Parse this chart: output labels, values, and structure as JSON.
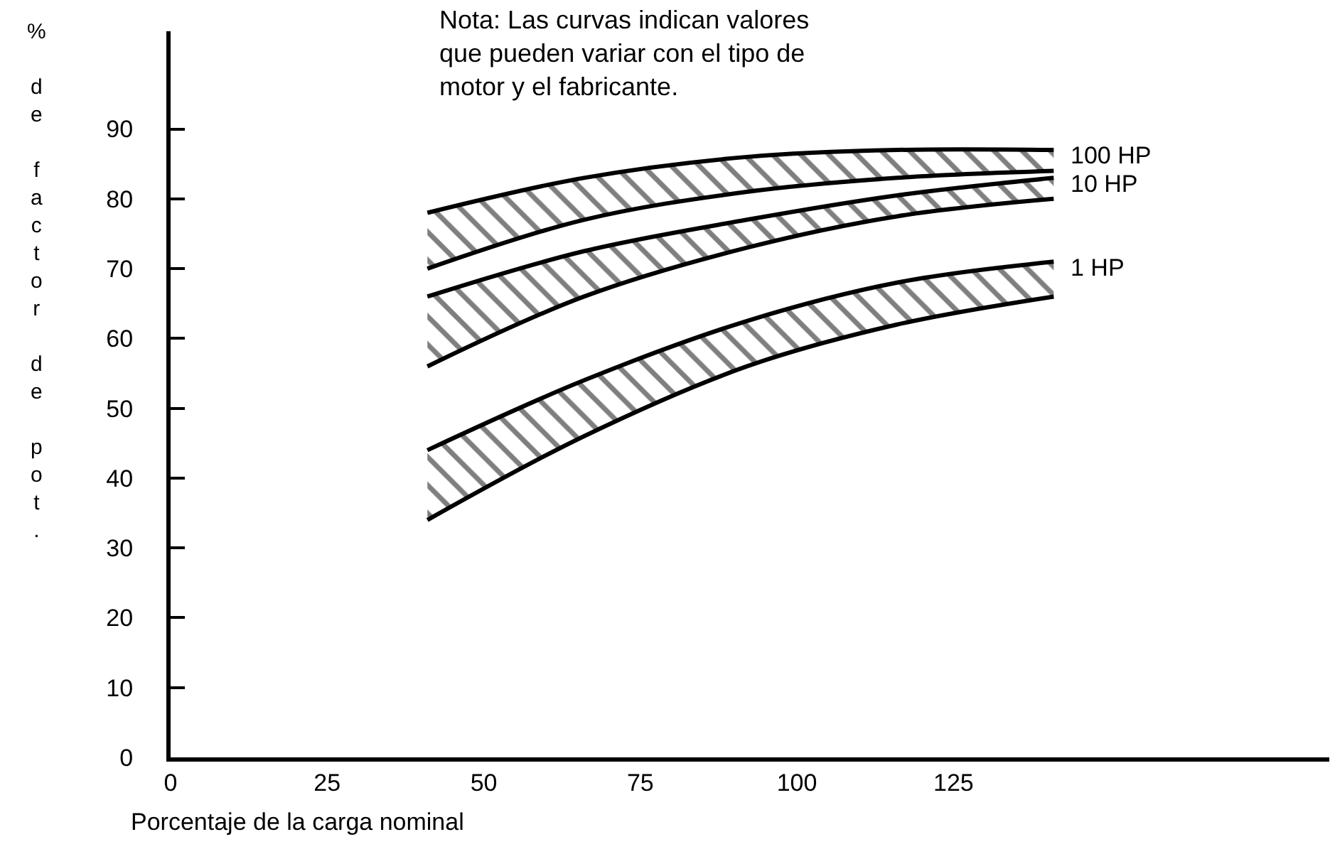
{
  "chart_data": {
    "type": "area",
    "ylabel": "% de factor de pot.",
    "xlabel": "Porcentaje de la carga nominal",
    "annotations": [
      "Nota: Las curvas indican valores que pueden variar con el tipo de motor y el fabricante."
    ],
    "x": [
      41,
      66,
      92,
      116,
      141
    ],
    "series": [
      {
        "name": "100 HP",
        "color": "#000000",
        "values": [
          null,
          null,
          null,
          null,
          null
        ],
        "lower": [
          70,
          77,
          81,
          83,
          84
        ],
        "upper": [
          78,
          83,
          86,
          87,
          87
        ]
      },
      {
        "name": "10 HP",
        "color": "#000000",
        "values": [
          null,
          null,
          null,
          null,
          null
        ],
        "lower": [
          56,
          66,
          73,
          77.5,
          80
        ],
        "upper": [
          66,
          72.5,
          77,
          80.5,
          83
        ]
      },
      {
        "name": "1 HP",
        "color": "#000000",
        "values": [
          null,
          null,
          null,
          null,
          null
        ],
        "lower": [
          34,
          46,
          56,
          62,
          66
        ],
        "upper": [
          44,
          54,
          62.5,
          68,
          71
        ]
      }
    ],
    "xlim": [
      0,
      185
    ],
    "xticks": [
      0,
      25,
      50,
      75,
      100,
      125
    ],
    "ylim": [
      0,
      104
    ],
    "yticks": [
      0,
      10,
      20,
      30,
      40,
      50,
      60,
      70,
      80,
      90
    ],
    "legend": false
  }
}
